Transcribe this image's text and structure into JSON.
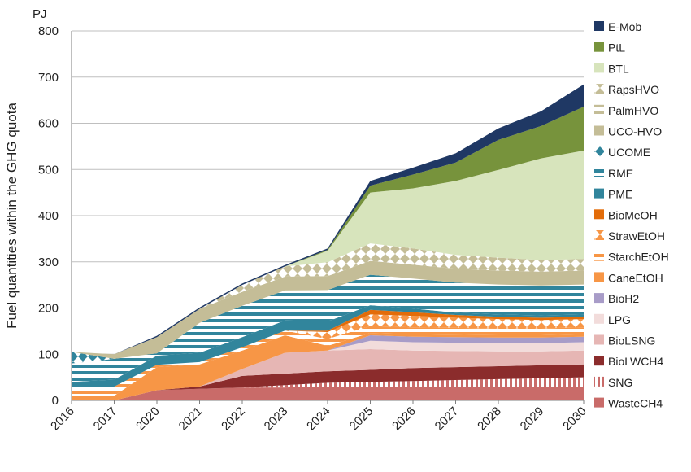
{
  "chart_data": {
    "type": "area",
    "stacked": true,
    "unit": "PJ",
    "ylabel": "Fuel quantities within the GHG quota",
    "ylim": [
      0,
      800
    ],
    "yticks": [
      0,
      100,
      200,
      300,
      400,
      500,
      600,
      700,
      800
    ],
    "categories": [
      "2016",
      "2017",
      "2020",
      "2021",
      "2022",
      "2023",
      "2024",
      "2025",
      "2026",
      "2027",
      "2028",
      "2029",
      "2030"
    ],
    "legend_position": "right",
    "grid": "horizontal",
    "series": [
      {
        "name": "WasteCH4",
        "color": "#c96b69",
        "pattern": "solid",
        "values": [
          0,
          0,
          22,
          25,
          28,
          28,
          30,
          30,
          30,
          30,
          30,
          30,
          30
        ]
      },
      {
        "name": "SNG",
        "color": "#c0504d",
        "pattern": "vstripes",
        "values": [
          0,
          0,
          0,
          0,
          0,
          5,
          8,
          10,
          12,
          14,
          16,
          18,
          20
        ]
      },
      {
        "name": "BioLWCH4",
        "color": "#8b2c2c",
        "pattern": "solid",
        "values": [
          0,
          0,
          0,
          5,
          25,
          25,
          25,
          26,
          28,
          28,
          28,
          28,
          28
        ]
      },
      {
        "name": "BioLSNG",
        "color": "#e6b6b4",
        "pattern": "solid",
        "values": [
          0,
          0,
          0,
          0,
          15,
          45,
          45,
          45,
          38,
          35,
          32,
          30,
          30
        ]
      },
      {
        "name": "LPG",
        "color": "#f2dcdb",
        "pattern": "solid",
        "values": [
          0,
          0,
          0,
          0,
          0,
          0,
          0,
          18,
          18,
          18,
          18,
          18,
          18
        ]
      },
      {
        "name": "BioH2",
        "color": "#a89cc8",
        "pattern": "solid",
        "values": [
          0,
          0,
          0,
          0,
          0,
          0,
          0,
          12,
          12,
          12,
          12,
          12,
          12
        ]
      },
      {
        "name": "CaneEtOH",
        "color": "#f79646",
        "pattern": "solid",
        "values": [
          10,
          10,
          50,
          48,
          40,
          38,
          10,
          5,
          5,
          5,
          5,
          5,
          5
        ]
      },
      {
        "name": "StarchEtOH",
        "color": "#f79646",
        "pattern": "hstripes",
        "values": [
          20,
          20,
          5,
          5,
          7,
          10,
          15,
          15,
          15,
          15,
          15,
          15,
          15
        ]
      },
      {
        "name": "StrawEtOH",
        "color": "#f79646",
        "pattern": "diamond",
        "values": [
          0,
          0,
          0,
          0,
          0,
          0,
          15,
          25,
          25,
          22,
          20,
          18,
          18
        ]
      },
      {
        "name": "BioMeOH",
        "color": "#e36c09",
        "pattern": "solid",
        "values": [
          0,
          0,
          0,
          0,
          0,
          0,
          3,
          10,
          8,
          6,
          5,
          5,
          5
        ]
      },
      {
        "name": "PME",
        "color": "#31859c",
        "pattern": "solid",
        "values": [
          10,
          15,
          20,
          20,
          22,
          22,
          20,
          10,
          8,
          5,
          5,
          5,
          5
        ]
      },
      {
        "name": "RME",
        "color": "#31859c",
        "pattern": "hstripes",
        "values": [
          40,
          45,
          5,
          65,
          68,
          65,
          68,
          66,
          65,
          65,
          65,
          65,
          65
        ]
      },
      {
        "name": "UCOME",
        "color": "#31859c",
        "pattern": "diamond",
        "values": [
          25,
          0,
          0,
          0,
          0,
          0,
          0,
          0,
          0,
          0,
          0,
          0,
          0
        ]
      },
      {
        "name": "UCO-HVO",
        "color": "#c4bd97",
        "pattern": "solid",
        "values": [
          0,
          10,
          35,
          30,
          30,
          30,
          30,
          30,
          30,
          30,
          30,
          30,
          30
        ]
      },
      {
        "name": "PalmHVO",
        "color": "#c4bd97",
        "pattern": "hstripes",
        "values": [
          0,
          0,
          0,
          0,
          0,
          0,
          0,
          0,
          0,
          0,
          0,
          0,
          0
        ]
      },
      {
        "name": "RapsHVO",
        "color": "#c4bd97",
        "pattern": "diamond",
        "values": [
          0,
          0,
          0,
          0,
          15,
          22,
          30,
          38,
          35,
          30,
          28,
          25,
          25
        ]
      },
      {
        "name": "BTL",
        "color": "#d7e4bc",
        "pattern": "solid",
        "values": [
          0,
          0,
          0,
          0,
          0,
          0,
          25,
          110,
          130,
          160,
          190,
          220,
          235
        ]
      },
      {
        "name": "PtL",
        "color": "#77933c",
        "pattern": "solid",
        "values": [
          0,
          0,
          0,
          0,
          0,
          0,
          2,
          15,
          30,
          40,
          65,
          70,
          95
        ]
      },
      {
        "name": "E-Mob",
        "color": "#1f3864",
        "pattern": "solid",
        "values": [
          0,
          0,
          3,
          3,
          3,
          3,
          3,
          10,
          15,
          20,
          25,
          32,
          48
        ]
      }
    ]
  }
}
